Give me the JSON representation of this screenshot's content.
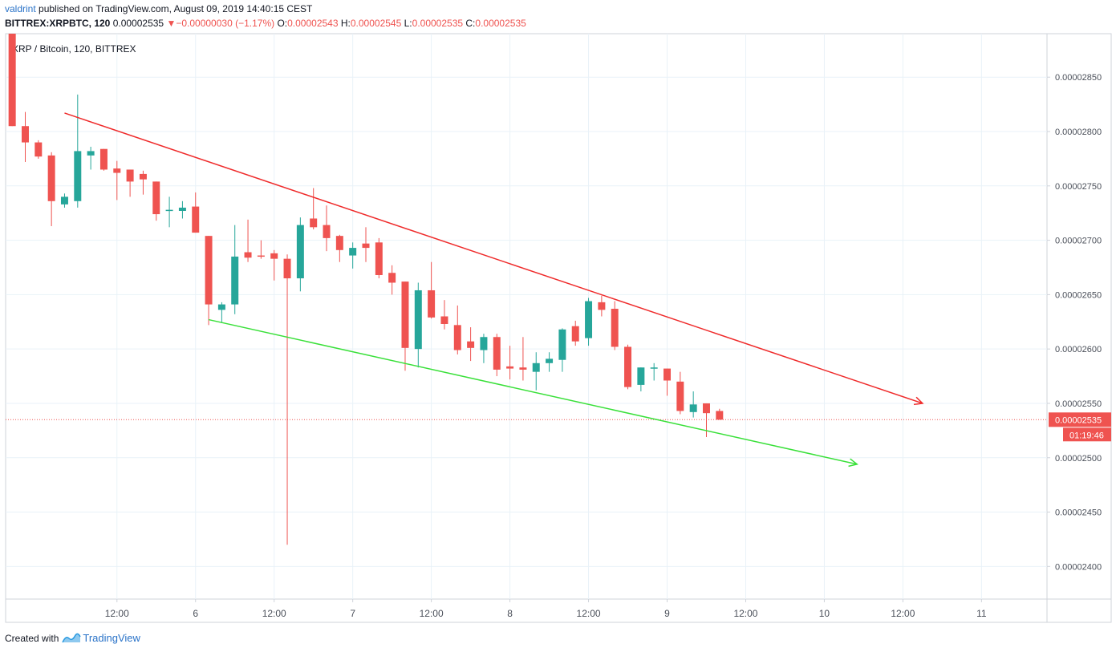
{
  "header": {
    "author": "valdrint",
    "published_text": "published on TradingView.com, August 09, 2019 14:40:15 CEST",
    "symbol": "BITTREX:XRPBTC, 120",
    "last": "0.00002535",
    "change_arrow": "▼",
    "change": "−0.00000030 (−1.17%)",
    "o_label": "O:",
    "o_value": "0.00002543",
    "h_label": "H:",
    "h_value": "0.00002545",
    "l_label": "L:",
    "l_value": "0.00002535",
    "c_label": "C:",
    "c_value": "0.00002535"
  },
  "footer": {
    "created_with": "Created with",
    "brand": "TradingView"
  },
  "chart_data": {
    "type": "candlestick",
    "title": "XRP / Bitcoin, 120, BITTREX",
    "ylim": [
      2.37e-05,
      2.89e-05
    ],
    "y_ticks": [
      {
        "value": 2.4e-05,
        "label": "0.00002400"
      },
      {
        "value": 2.45e-05,
        "label": "0.00002450"
      },
      {
        "value": 2.5e-05,
        "label": "0.00002500"
      },
      {
        "value": 2.55e-05,
        "label": "0.00002550"
      },
      {
        "value": 2.6e-05,
        "label": "0.00002600"
      },
      {
        "value": 2.65e-05,
        "label": "0.00002650"
      },
      {
        "value": 2.7e-05,
        "label": "0.00002700"
      },
      {
        "value": 2.75e-05,
        "label": "0.00002750"
      },
      {
        "value": 2.8e-05,
        "label": "0.00002800"
      },
      {
        "value": 2.85e-05,
        "label": "0.00002850"
      }
    ],
    "x_range_hours": [
      -17,
      142
    ],
    "x_ticks": [
      {
        "t": 0,
        "label": "12:00"
      },
      {
        "t": 12,
        "label": "6"
      },
      {
        "t": 24,
        "label": "12:00"
      },
      {
        "t": 36,
        "label": "7"
      },
      {
        "t": 48,
        "label": "12:00"
      },
      {
        "t": 60,
        "label": "8"
      },
      {
        "t": 72,
        "label": "12:00"
      },
      {
        "t": 84,
        "label": "9"
      },
      {
        "t": 96,
        "label": "12:00"
      },
      {
        "t": 108,
        "label": "10"
      },
      {
        "t": 120,
        "label": "12:00"
      },
      {
        "t": 132,
        "label": "11"
      }
    ],
    "time_unit": "hours from Aug 5 12:00",
    "candles": [
      {
        "t": -16,
        "o": 2.89e-05,
        "h": 2.89e-05,
        "l": 2.805e-05,
        "c": 2.805e-05
      },
      {
        "t": -14,
        "o": 2.805e-05,
        "h": 2.818e-05,
        "l": 2.772e-05,
        "c": 2.79e-05
      },
      {
        "t": -12,
        "o": 2.79e-05,
        "h": 2.792e-05,
        "l": 2.775e-05,
        "c": 2.777e-05
      },
      {
        "t": -10,
        "o": 2.778e-05,
        "h": 2.781e-05,
        "l": 2.713e-05,
        "c": 2.736e-05
      },
      {
        "t": -8,
        "o": 2.733e-05,
        "h": 2.743e-05,
        "l": 2.73e-05,
        "c": 2.74e-05
      },
      {
        "t": -6,
        "o": 2.736e-05,
        "h": 2.834e-05,
        "l": 2.73e-05,
        "c": 2.782e-05
      },
      {
        "t": -4,
        "o": 2.778e-05,
        "h": 2.786e-05,
        "l": 2.765e-05,
        "c": 2.782e-05
      },
      {
        "t": -2,
        "o": 2.784e-05,
        "h": 2.784e-05,
        "l": 2.764e-05,
        "c": 2.765e-05
      },
      {
        "t": 0,
        "o": 2.766e-05,
        "h": 2.773e-05,
        "l": 2.737e-05,
        "c": 2.762e-05
      },
      {
        "t": 2,
        "o": 2.765e-05,
        "h": 2.765e-05,
        "l": 2.74e-05,
        "c": 2.754e-05
      },
      {
        "t": 4,
        "o": 2.761e-05,
        "h": 2.764e-05,
        "l": 2.742e-05,
        "c": 2.756e-05
      },
      {
        "t": 6,
        "o": 2.754e-05,
        "h": 2.754e-05,
        "l": 2.718e-05,
        "c": 2.724e-05
      },
      {
        "t": 8,
        "o": 2.727e-05,
        "h": 2.74e-05,
        "l": 2.712e-05,
        "c": 2.728e-05
      },
      {
        "t": 10,
        "o": 2.727e-05,
        "h": 2.736e-05,
        "l": 2.72e-05,
        "c": 2.73e-05
      },
      {
        "t": 12,
        "o": 2.731e-05,
        "h": 2.744e-05,
        "l": 2.707e-05,
        "c": 2.707e-05
      },
      {
        "t": 14,
        "o": 2.704e-05,
        "h": 2.704e-05,
        "l": 2.622e-05,
        "c": 2.641e-05
      },
      {
        "t": 16,
        "o": 2.636e-05,
        "h": 2.643e-05,
        "l": 2.624e-05,
        "c": 2.641e-05
      },
      {
        "t": 18,
        "o": 2.641e-05,
        "h": 2.714e-05,
        "l": 2.632e-05,
        "c": 2.685e-05
      },
      {
        "t": 20,
        "o": 2.689e-05,
        "h": 2.719e-05,
        "l": 2.68e-05,
        "c": 2.684e-05
      },
      {
        "t": 22,
        "o": 2.686e-05,
        "h": 2.7e-05,
        "l": 2.683e-05,
        "c": 2.685e-05
      },
      {
        "t": 24,
        "o": 2.688e-05,
        "h": 2.691e-05,
        "l": 2.663e-05,
        "c": 2.683e-05
      },
      {
        "t": 26,
        "o": 2.683e-05,
        "h": 2.687e-05,
        "l": 2.42e-05,
        "c": 2.665e-05
      },
      {
        "t": 28,
        "o": 2.665e-05,
        "h": 2.721e-05,
        "l": 2.653e-05,
        "c": 2.714e-05
      },
      {
        "t": 30,
        "o": 2.72e-05,
        "h": 2.748e-05,
        "l": 2.71e-05,
        "c": 2.712e-05
      },
      {
        "t": 32,
        "o": 2.714e-05,
        "h": 2.732e-05,
        "l": 2.69e-05,
        "c": 2.702e-05
      },
      {
        "t": 34,
        "o": 2.704e-05,
        "h": 2.705e-05,
        "l": 2.68e-05,
        "c": 2.691e-05
      },
      {
        "t": 36,
        "o": 2.686e-05,
        "h": 2.698e-05,
        "l": 2.674e-05,
        "c": 2.693e-05
      },
      {
        "t": 38,
        "o": 2.697e-05,
        "h": 2.712e-05,
        "l": 2.68e-05,
        "c": 2.693e-05
      },
      {
        "t": 40,
        "o": 2.698e-05,
        "h": 2.702e-05,
        "l": 2.665e-05,
        "c": 2.668e-05
      },
      {
        "t": 42,
        "o": 2.67e-05,
        "h": 2.677e-05,
        "l": 2.65e-05,
        "c": 2.661e-05
      },
      {
        "t": 44,
        "o": 2.662e-05,
        "h": 2.662e-05,
        "l": 2.58e-05,
        "c": 2.601e-05
      },
      {
        "t": 46,
        "o": 2.6e-05,
        "h": 2.661e-05,
        "l": 2.583e-05,
        "c": 2.654e-05
      },
      {
        "t": 48,
        "o": 2.654e-05,
        "h": 2.68e-05,
        "l": 2.628e-05,
        "c": 2.629e-05
      },
      {
        "t": 50,
        "o": 2.63e-05,
        "h": 2.645e-05,
        "l": 2.618e-05,
        "c": 2.623e-05
      },
      {
        "t": 52,
        "o": 2.622e-05,
        "h": 2.64e-05,
        "l": 2.595e-05,
        "c": 2.599e-05
      },
      {
        "t": 54,
        "o": 2.607e-05,
        "h": 2.62e-05,
        "l": 2.589e-05,
        "c": 2.601e-05
      },
      {
        "t": 56,
        "o": 2.599e-05,
        "h": 2.614e-05,
        "l": 2.587e-05,
        "c": 2.611e-05
      },
      {
        "t": 58,
        "o": 2.611e-05,
        "h": 2.614e-05,
        "l": 2.575e-05,
        "c": 2.581e-05
      },
      {
        "t": 60,
        "o": 2.584e-05,
        "h": 2.603e-05,
        "l": 2.572e-05,
        "c": 2.582e-05
      },
      {
        "t": 62,
        "o": 2.583e-05,
        "h": 2.611e-05,
        "l": 2.571e-05,
        "c": 2.581e-05
      },
      {
        "t": 64,
        "o": 2.579e-05,
        "h": 2.597e-05,
        "l": 2.562e-05,
        "c": 2.587e-05
      },
      {
        "t": 66,
        "o": 2.587e-05,
        "h": 2.597e-05,
        "l": 2.579e-05,
        "c": 2.591e-05
      },
      {
        "t": 68,
        "o": 2.59e-05,
        "h": 2.619e-05,
        "l": 2.579e-05,
        "c": 2.618e-05
      },
      {
        "t": 70,
        "o": 2.621e-05,
        "h": 2.626e-05,
        "l": 2.603e-05,
        "c": 2.607e-05
      },
      {
        "t": 72,
        "o": 2.61e-05,
        "h": 2.647e-05,
        "l": 2.603e-05,
        "c": 2.644e-05
      },
      {
        "t": 74,
        "o": 2.643e-05,
        "h": 2.649e-05,
        "l": 2.63e-05,
        "c": 2.636e-05
      },
      {
        "t": 76,
        "o": 2.637e-05,
        "h": 2.644e-05,
        "l": 2.599e-05,
        "c": 2.602e-05
      },
      {
        "t": 78,
        "o": 2.602e-05,
        "h": 2.604e-05,
        "l": 2.563e-05,
        "c": 2.565e-05
      },
      {
        "t": 80,
        "o": 2.567e-05,
        "h": 2.583e-05,
        "l": 2.561e-05,
        "c": 2.583e-05
      },
      {
        "t": 82,
        "o": 2.583e-05,
        "h": 2.587e-05,
        "l": 2.571e-05,
        "c": 2.583e-05
      },
      {
        "t": 84,
        "o": 2.582e-05,
        "h": 2.582e-05,
        "l": 2.557e-05,
        "c": 2.571e-05
      },
      {
        "t": 86,
        "o": 2.57e-05,
        "h": 2.579e-05,
        "l": 2.54e-05,
        "c": 2.543e-05
      },
      {
        "t": 88,
        "o": 2.542e-05,
        "h": 2.561e-05,
        "l": 2.537e-05,
        "c": 2.549e-05
      },
      {
        "t": 90,
        "o": 2.55e-05,
        "h": 2.55e-05,
        "l": 2.519e-05,
        "c": 2.541e-05
      },
      {
        "t": 92,
        "o": 2.543e-05,
        "h": 2.545e-05,
        "l": 2.535e-05,
        "c": 2.535e-05
      }
    ],
    "trendlines": [
      {
        "name": "upper",
        "color": "#ef2b2b",
        "from": {
          "t": -8,
          "p": 2.817e-05
        },
        "to": {
          "t": 123,
          "p": 2.55e-05
        }
      },
      {
        "name": "lower",
        "color": "#3ae03a",
        "from": {
          "t": 14,
          "p": 2.627e-05
        },
        "to": {
          "t": 113,
          "p": 2.494e-05
        }
      }
    ],
    "last_price": {
      "value": 2.535e-05,
      "label": "0.00002535",
      "countdown": "01:19:46"
    },
    "colors": {
      "up": "#26a69a",
      "down": "#ef5350",
      "grid": "#e9f2f8",
      "axis": "#787b86",
      "last_line": "#ef5350"
    }
  }
}
